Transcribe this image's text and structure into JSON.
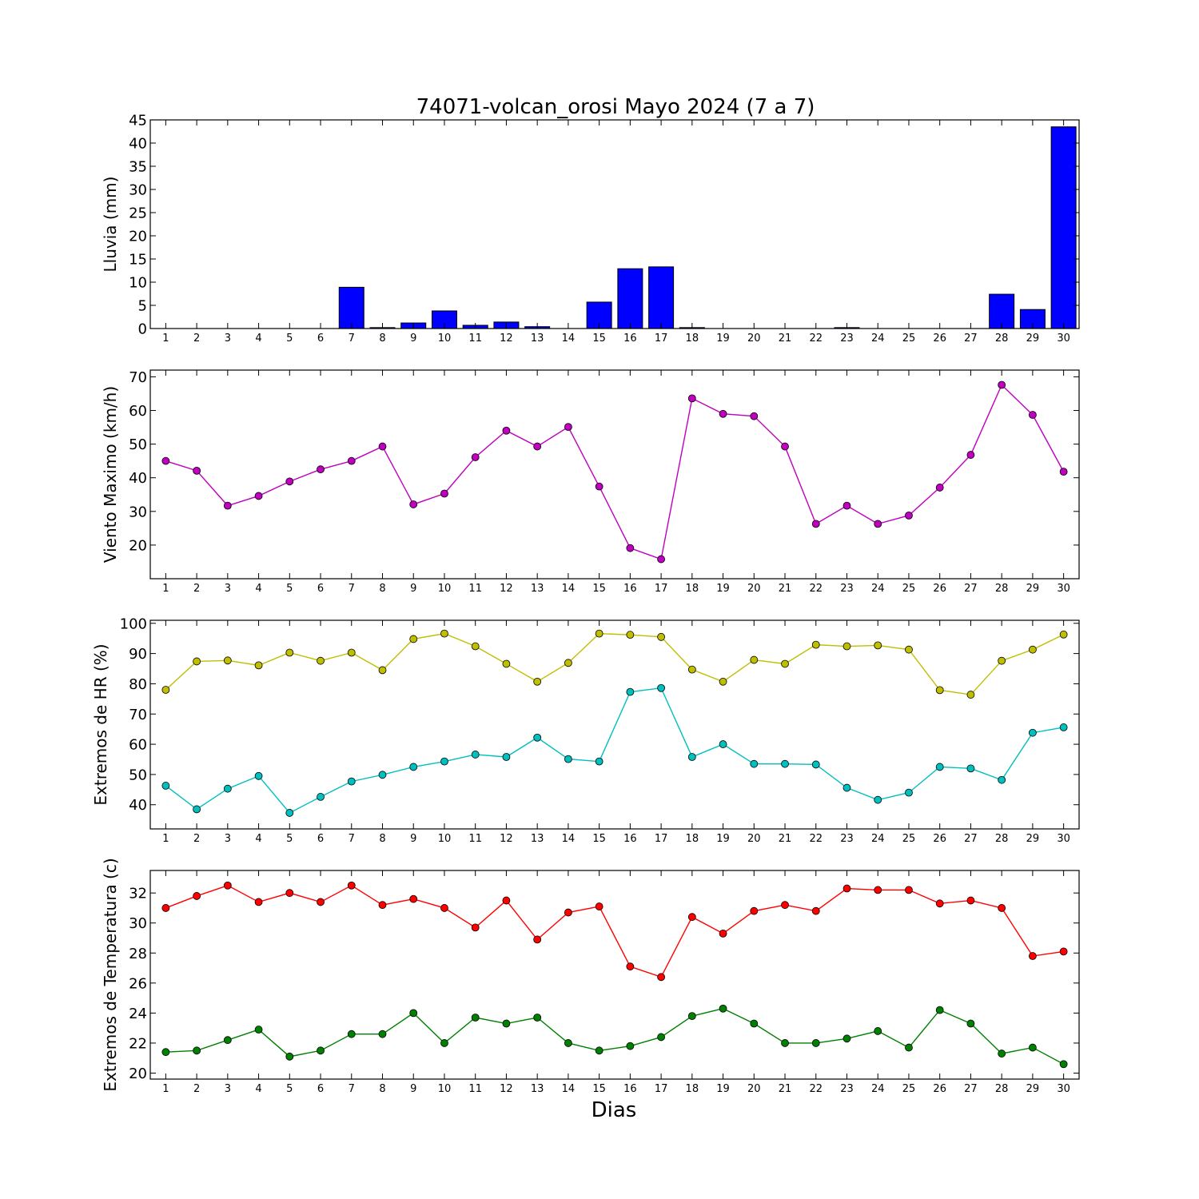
{
  "figure": {
    "title": "74071-volcan_orosi Mayo 2024  (7 a 7)",
    "xlabel": "Dias"
  },
  "chart_data": [
    {
      "type": "bar",
      "ylabel": "Lluvia (mm)",
      "ylim": [
        0,
        45
      ],
      "yticks": [
        0,
        5,
        10,
        15,
        20,
        25,
        30,
        35,
        40,
        45
      ],
      "x": [
        1,
        2,
        3,
        4,
        5,
        6,
        7,
        8,
        9,
        10,
        11,
        12,
        13,
        14,
        15,
        16,
        17,
        18,
        19,
        20,
        21,
        22,
        23,
        24,
        25,
        26,
        27,
        28,
        29,
        30
      ],
      "series": [
        {
          "color": "#0000ff",
          "values": [
            0,
            0,
            0,
            0,
            0,
            0,
            8.9,
            0.2,
            1.2,
            3.8,
            0.7,
            1.4,
            0.4,
            0,
            5.7,
            12.9,
            13.3,
            0.2,
            0,
            0,
            0,
            0,
            0.2,
            0,
            0,
            0,
            0,
            7.4,
            4.1,
            43.5
          ]
        }
      ]
    },
    {
      "type": "line",
      "ylabel": "Viento Maximo (km/h)",
      "ylim": [
        10,
        72
      ],
      "yticks": [
        20,
        30,
        40,
        50,
        60,
        70
      ],
      "x": [
        1,
        2,
        3,
        4,
        5,
        6,
        7,
        8,
        9,
        10,
        11,
        12,
        13,
        14,
        15,
        16,
        17,
        18,
        19,
        20,
        21,
        22,
        23,
        24,
        25,
        26,
        27,
        28,
        29,
        30
      ],
      "series": [
        {
          "color": "#bf00bf",
          "values": [
            45,
            42.1,
            31.7,
            34.6,
            38.9,
            42.5,
            45,
            49.3,
            32.1,
            35.3,
            46.1,
            54,
            49.3,
            55.1,
            37.4,
            19.1,
            15.8,
            63.6,
            59,
            58.3,
            49.3,
            26.3,
            31.7,
            26.3,
            28.8,
            37.1,
            46.8,
            67.6,
            58.7,
            41.8
          ]
        }
      ]
    },
    {
      "type": "line",
      "ylabel": "Extremos de HR (%)",
      "ylim": [
        32,
        101
      ],
      "yticks": [
        40,
        50,
        60,
        70,
        80,
        90,
        100
      ],
      "x": [
        1,
        2,
        3,
        4,
        5,
        6,
        7,
        8,
        9,
        10,
        11,
        12,
        13,
        14,
        15,
        16,
        17,
        18,
        19,
        20,
        21,
        22,
        23,
        24,
        25,
        26,
        27,
        28,
        29,
        30
      ],
      "series": [
        {
          "color": "#bfbf00",
          "values": [
            78,
            87.4,
            87.7,
            86.1,
            90.3,
            87.6,
            90.3,
            84.5,
            94.8,
            96.6,
            92.4,
            86.6,
            80.7,
            86.9,
            96.6,
            96.2,
            95.5,
            84.7,
            80.7,
            87.9,
            86.6,
            92.9,
            92.4,
            92.7,
            91.3,
            77.9,
            76.4,
            87.6,
            91.3,
            96.3
          ]
        },
        {
          "color": "#00bfbf",
          "values": [
            46.3,
            38.5,
            45.3,
            49.5,
            37.3,
            42.6,
            47.7,
            49.9,
            52.5,
            54.3,
            56.6,
            55.8,
            62.2,
            55.1,
            54.3,
            77.3,
            78.6,
            55.8,
            60,
            53.5,
            53.5,
            53.3,
            45.6,
            41.6,
            44,
            52.5,
            52,
            48.2,
            63.8,
            65.6
          ]
        }
      ]
    },
    {
      "type": "line",
      "ylabel": "Extremos de Temperatura (c)",
      "ylim": [
        19.6,
        33.5
      ],
      "yticks": [
        20,
        22,
        24,
        26,
        28,
        30,
        32
      ],
      "x": [
        1,
        2,
        3,
        4,
        5,
        6,
        7,
        8,
        9,
        10,
        11,
        12,
        13,
        14,
        15,
        16,
        17,
        18,
        19,
        20,
        21,
        22,
        23,
        24,
        25,
        26,
        27,
        28,
        29,
        30
      ],
      "series": [
        {
          "color": "#ff0000",
          "values": [
            31,
            31.8,
            32.5,
            31.4,
            32,
            31.4,
            32.5,
            31.2,
            31.6,
            31,
            29.7,
            31.5,
            28.9,
            30.7,
            31.1,
            27.1,
            26.4,
            30.4,
            29.3,
            30.8,
            31.2,
            30.8,
            32.3,
            32.2,
            32.2,
            31.3,
            31.5,
            31,
            27.8,
            28.1
          ]
        },
        {
          "color": "#008000",
          "values": [
            21.4,
            21.5,
            22.2,
            22.9,
            21.1,
            21.5,
            22.6,
            22.6,
            24,
            22,
            23.7,
            23.3,
            23.7,
            22,
            21.5,
            21.8,
            22.4,
            23.8,
            24.3,
            23.3,
            22,
            22,
            22.3,
            22.8,
            21.7,
            24.2,
            23.3,
            21.3,
            21.7,
            20.6
          ]
        }
      ]
    }
  ]
}
